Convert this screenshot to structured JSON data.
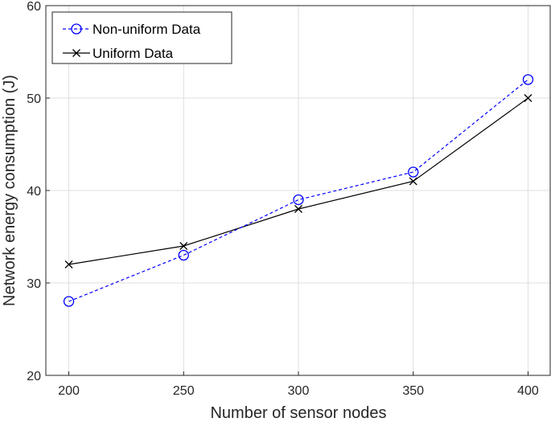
{
  "chart_data": {
    "type": "line",
    "xlabel": "Number of sensor nodes",
    "ylabel": "Network energy consumption (J)",
    "x": [
      200,
      250,
      300,
      350,
      400
    ],
    "xlim": [
      190,
      410
    ],
    "ylim": [
      20,
      60
    ],
    "xticks": [
      200,
      250,
      300,
      350,
      400
    ],
    "yticks": [
      20,
      30,
      40,
      50,
      60
    ],
    "grid": true,
    "legend_position": "top-left",
    "series": [
      {
        "name": "Non-uniform Data",
        "values": [
          28,
          33,
          39,
          42,
          52
        ],
        "color": "#0000ff",
        "line_style": "dashed",
        "marker": "circle"
      },
      {
        "name": "Uniform Data",
        "values": [
          32,
          34,
          38,
          41,
          50
        ],
        "color": "#000000",
        "line_style": "solid",
        "marker": "x"
      }
    ]
  }
}
